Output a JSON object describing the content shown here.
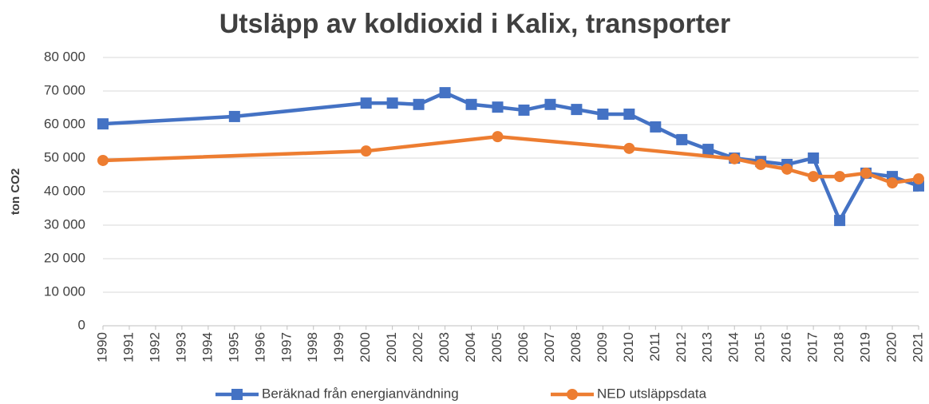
{
  "chart_data": {
    "type": "line",
    "title": "Utsläpp av koldioxid i Kalix, transporter",
    "y_label": "ton CO2",
    "xlim": [
      1990,
      2021
    ],
    "xticks": [
      1990,
      1991,
      1992,
      1993,
      1994,
      1995,
      1996,
      1997,
      1998,
      1999,
      2000,
      2001,
      2002,
      2003,
      2004,
      2005,
      2006,
      2007,
      2008,
      2009,
      2010,
      2011,
      2012,
      2013,
      2014,
      2015,
      2016,
      2017,
      2018,
      2019,
      2020,
      2021
    ],
    "ylim": [
      0,
      80000
    ],
    "yticks": [
      {
        "value": 0,
        "label": "0"
      },
      {
        "value": 10000,
        "label": "10 000"
      },
      {
        "value": 20000,
        "label": "20 000"
      },
      {
        "value": 30000,
        "label": "30 000"
      },
      {
        "value": 40000,
        "label": "40 000"
      },
      {
        "value": 50000,
        "label": "50 000"
      },
      {
        "value": 60000,
        "label": "60 000"
      },
      {
        "value": 70000,
        "label": "70 000"
      },
      {
        "value": 80000,
        "label": "80 000"
      }
    ],
    "grid": true,
    "legend": "bottom",
    "series": [
      {
        "name": "Beräknad från energianvändning",
        "color": "#4472c4",
        "marker": "square",
        "x": [
          1990,
          1995,
          2000,
          2001,
          2002,
          2003,
          2004,
          2005,
          2006,
          2007,
          2008,
          2009,
          2010,
          2011,
          2012,
          2013,
          2014,
          2015,
          2016,
          2017,
          2018,
          2019,
          2020,
          2021
        ],
        "values": [
          60200,
          62400,
          66400,
          66400,
          66000,
          69500,
          66000,
          65200,
          64300,
          66000,
          64500,
          63100,
          63100,
          59300,
          55500,
          52600,
          50000,
          49000,
          48100,
          50000,
          31400,
          45500,
          44500,
          41700
        ]
      },
      {
        "name": "NED utsläppsdata",
        "color": "#ed7d31",
        "marker": "circle",
        "x": [
          1990,
          2000,
          2005,
          2010,
          2014,
          2015,
          2016,
          2017,
          2018,
          2019,
          2020,
          2021
        ],
        "values": [
          49300,
          52100,
          56400,
          52900,
          49800,
          48100,
          46700,
          44500,
          44500,
          45500,
          42600,
          43800
        ]
      }
    ]
  }
}
